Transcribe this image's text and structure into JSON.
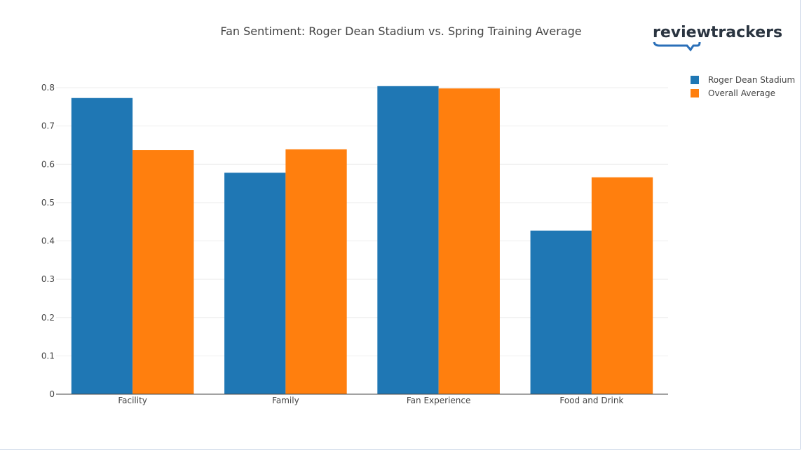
{
  "logo_text": "reviewtrackers",
  "chart_data": {
    "type": "bar",
    "title": "Fan Sentiment: Roger Dean Stadium vs. Spring Training Average",
    "xlabel": "",
    "ylabel": "",
    "categories": [
      "Facility",
      "Family",
      "Fan Experience",
      "Food and Drink"
    ],
    "series": [
      {
        "name": "Roger Dean Stadium",
        "color": "#1f77b4",
        "values": [
          0.773,
          0.578,
          0.804,
          0.427
        ]
      },
      {
        "name": "Overall Average",
        "color": "#ff7f0e",
        "values": [
          0.637,
          0.639,
          0.798,
          0.566
        ]
      }
    ],
    "ylim": [
      0,
      0.8
    ],
    "yticks": [
      "0",
      "0.1",
      "0.2",
      "0.3",
      "0.4",
      "0.5",
      "0.6",
      "0.7",
      "0.8"
    ],
    "grid": true,
    "legend_position": "top-right"
  }
}
